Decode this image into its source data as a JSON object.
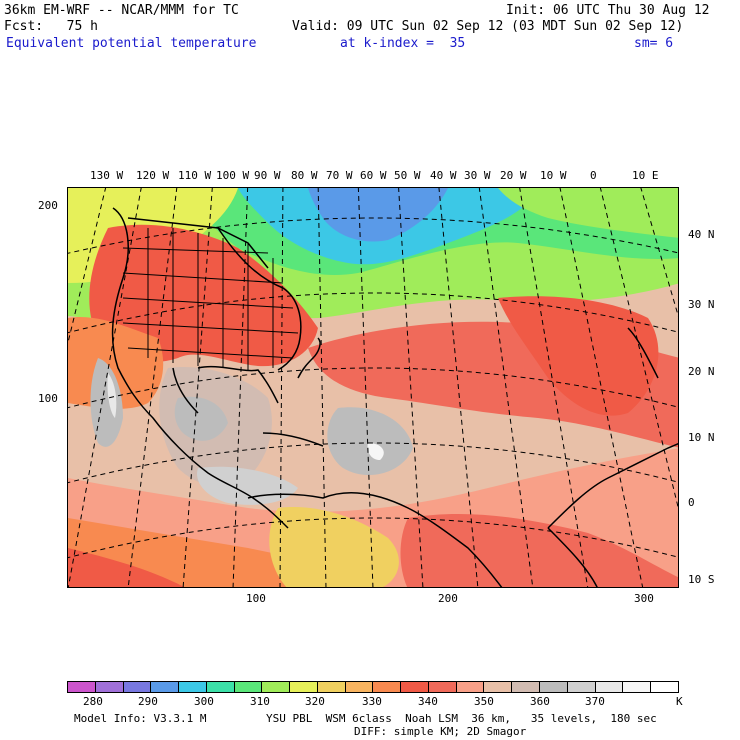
{
  "header": {
    "title_left": "36km EM-WRF -- NCAR/MMM for TC",
    "init": "Init: 06 UTC Thu 30 Aug 12",
    "fcst": "Fcst:   75 h",
    "valid": "Valid: 09 UTC Sun 02 Sep 12 (03 MDT Sun 02 Sep 12)",
    "field": "Equivalent potential temperature",
    "level": "at k-index =  35",
    "smooth": "sm= 6"
  },
  "map": {
    "lon_labels": [
      "130 W",
      "120 W",
      "110 W",
      "100 W",
      "90 W",
      "80 W",
      "70 W",
      "60 W",
      "50 W",
      "40 W",
      "30 W",
      "20 W",
      "10 W",
      "0",
      "10 E"
    ],
    "lat_labels": [
      "40 N",
      "30 N",
      "20 N",
      "10 N",
      "0",
      "10 S"
    ],
    "y_ticks": [
      "200",
      "100"
    ],
    "x_ticks": [
      "100",
      "200",
      "300"
    ]
  },
  "colorbar": {
    "colors": [
      "#cc55cc",
      "#a070d8",
      "#7878e0",
      "#5a9ae8",
      "#3cc8e6",
      "#3ce0a8",
      "#5ae67a",
      "#a0ec5a",
      "#e6f05a",
      "#f0d060",
      "#f8b460",
      "#f88a50",
      "#f05a46",
      "#f06a5a",
      "#f8a088",
      "#e8c0a8",
      "#d2bcb2",
      "#bcbcbc",
      "#d0d0d0",
      "#e8e8e8",
      "#f6f6f6",
      "#ffffff"
    ],
    "labels": [
      "280",
      "290",
      "300",
      "310",
      "320",
      "330",
      "340",
      "350",
      "360",
      "370",
      "K"
    ]
  },
  "footer": {
    "line1_left": "Model Info: V3.3.1 M",
    "line1_right": "YSU PBL  WSM 6class  Noah LSM  36 km,   35 levels,  180 sec",
    "line2": "DIFF: simple KM; 2D Smagor"
  }
}
